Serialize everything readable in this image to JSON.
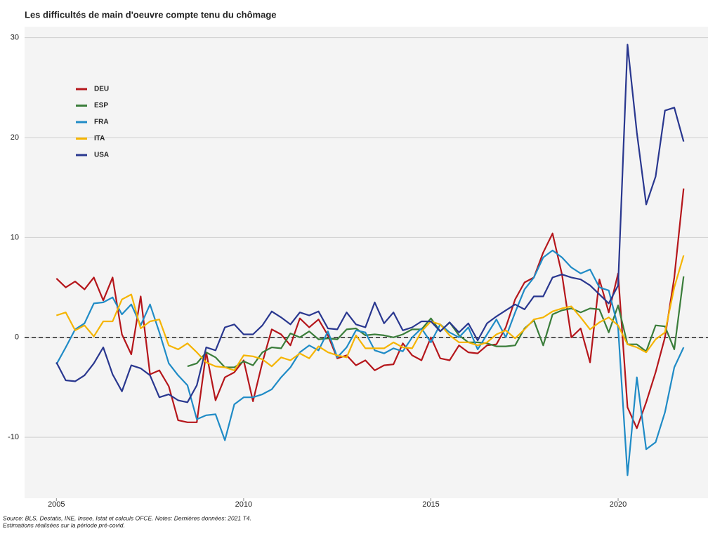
{
  "chart_data": {
    "type": "line",
    "title": "Les difficultés de main d'oeuvre compte tenu du chômage",
    "source": "Source: BLS, Destatis, INE, Insee, Istat et calculs OFCE. Notes: Dernières données: 2021 T4.",
    "note": "Estimations réalisées sur la période pré-covid.",
    "x": [
      2005,
      2005.25,
      2005.5,
      2005.75,
      2006,
      2006.25,
      2006.5,
      2006.75,
      2007,
      2007.25,
      2007.5,
      2007.75,
      2008,
      2008.25,
      2008.5,
      2008.75,
      2009,
      2009.25,
      2009.5,
      2009.75,
      2010,
      2010.25,
      2010.5,
      2010.75,
      2011,
      2011.25,
      2011.5,
      2011.75,
      2012,
      2012.25,
      2012.5,
      2012.75,
      2013,
      2013.25,
      2013.5,
      2013.75,
      2014,
      2014.25,
      2014.5,
      2014.75,
      2015,
      2015.25,
      2015.5,
      2015.75,
      2016,
      2016.25,
      2016.5,
      2016.75,
      2017,
      2017.25,
      2017.5,
      2017.75,
      2018,
      2018.25,
      2018.5,
      2018.75,
      2019,
      2019.25,
      2019.5,
      2019.75,
      2020,
      2020.25,
      2020.5,
      2020.75,
      2021,
      2021.25,
      2021.5,
      2021.75
    ],
    "series": [
      {
        "name": "DEU",
        "color": "#b5161b",
        "values": [
          5.9,
          5.0,
          5.6,
          4.8,
          6.0,
          3.7,
          6.0,
          0.3,
          -1.7,
          4.1,
          -3.7,
          -3.3,
          -4.9,
          -8.3,
          -8.5,
          -8.5,
          -1.5,
          -6.3,
          -4.0,
          -3.5,
          -2.3,
          -6.4,
          -2.5,
          0.8,
          0.3,
          -0.8,
          1.9,
          1.0,
          1.8,
          0.2,
          -2.1,
          -1.8,
          -2.8,
          -2.3,
          -3.3,
          -2.8,
          -2.7,
          -0.6,
          -1.8,
          -2.3,
          0.0,
          -2.1,
          -2.3,
          -0.8,
          -1.5,
          -1.6,
          -0.8,
          -0.7,
          1.0,
          3.8,
          5.5,
          6.0,
          8.5,
          10.4,
          6.3,
          0.0,
          0.9,
          -2.5,
          5.8,
          2.5,
          6.4,
          -7.0,
          -9.1,
          -6.5,
          -3.5,
          0.0,
          6.0,
          14.9
        ]
      },
      {
        "name": "ESP",
        "color": "#3a7d3a",
        "values": [
          null,
          null,
          null,
          null,
          null,
          null,
          null,
          null,
          null,
          null,
          null,
          null,
          null,
          null,
          -2.9,
          -2.6,
          -1.5,
          -2.0,
          -3.0,
          -3.0,
          -2.4,
          -2.8,
          -1.5,
          -1.0,
          -1.1,
          0.4,
          0.0,
          0.6,
          -0.2,
          -0.1,
          -0.2,
          0.8,
          0.9,
          0.2,
          0.3,
          0.2,
          0.0,
          0.3,
          0.8,
          0.8,
          1.9,
          0.6,
          1.5,
          0.2,
          -0.5,
          -0.5,
          -0.6,
          -0.9,
          -0.9,
          -0.8,
          0.9,
          1.7,
          -0.8,
          2.3,
          2.7,
          2.9,
          2.5,
          2.9,
          2.8,
          0.5,
          3.2,
          -0.7,
          -0.7,
          -1.4,
          1.2,
          1.1,
          -1.2,
          6.1
        ]
      },
      {
        "name": "FRA",
        "color": "#1f8bc6",
        "values": [
          -2.7,
          -1.0,
          0.8,
          1.4,
          3.4,
          3.5,
          4.0,
          2.3,
          3.3,
          1.2,
          3.3,
          0.5,
          -2.6,
          -3.8,
          -4.8,
          -8.2,
          -7.8,
          -7.7,
          -10.3,
          -6.7,
          -6.0,
          -6.0,
          -5.7,
          -5.2,
          -4.0,
          -3.0,
          -1.5,
          -0.8,
          -1.3,
          0.6,
          -2.0,
          -1.0,
          0.7,
          0.5,
          -1.3,
          -1.6,
          -1.1,
          -1.4,
          0.0,
          0.9,
          -0.5,
          1.3,
          0.5,
          0.0,
          1.0,
          -1.2,
          0.3,
          1.8,
          0.0,
          2.5,
          4.8,
          6.0,
          8.0,
          8.7,
          8.0,
          7.0,
          6.4,
          6.8,
          5.0,
          4.7,
          1.0,
          -13.8,
          -4.0,
          -11.2,
          -10.5,
          -7.5,
          -3.0,
          -1.0
        ]
      },
      {
        "name": "ITA",
        "color": "#f5b400",
        "values": [
          2.2,
          2.5,
          0.7,
          1.2,
          0.1,
          1.6,
          1.6,
          3.8,
          4.3,
          0.9,
          1.6,
          1.8,
          -0.8,
          -1.2,
          -0.6,
          -1.5,
          -2.5,
          -2.9,
          -3.0,
          -3.3,
          -1.8,
          -1.9,
          -2.2,
          -2.9,
          -2.0,
          -2.3,
          -1.6,
          -2.1,
          -0.9,
          -1.5,
          -1.8,
          -2.0,
          0.2,
          -1.1,
          -1.1,
          -1.1,
          -0.5,
          -1.0,
          -1.1,
          0.6,
          1.6,
          1.3,
          0.2,
          -0.5,
          -0.5,
          -0.8,
          -0.5,
          0.3,
          0.7,
          -0.1,
          0.8,
          1.8,
          2.0,
          2.6,
          2.9,
          3.1,
          2.0,
          0.8,
          1.5,
          2.0,
          1.2,
          -0.7,
          -1.0,
          -1.5,
          -0.2,
          0.5,
          5.0,
          8.2
        ]
      },
      {
        "name": "USA",
        "color": "#29378f",
        "values": [
          -2.5,
          -4.3,
          -4.4,
          -3.8,
          -2.6,
          -1.0,
          -3.7,
          -5.4,
          -2.8,
          -3.1,
          -3.8,
          -6.0,
          -5.7,
          -6.3,
          -6.5,
          -4.8,
          -1.0,
          -1.3,
          1.0,
          1.3,
          0.3,
          0.3,
          1.2,
          2.6,
          2.0,
          1.3,
          2.5,
          2.2,
          2.6,
          0.9,
          0.8,
          2.5,
          1.3,
          1.0,
          3.5,
          1.4,
          2.5,
          0.7,
          1.0,
          1.6,
          1.6,
          0.6,
          1.5,
          0.5,
          1.4,
          -0.3,
          1.4,
          2.1,
          2.7,
          3.3,
          2.8,
          4.1,
          4.1,
          6.0,
          6.3,
          6.0,
          5.8,
          5.2,
          4.3,
          3.4,
          5.2,
          29.3,
          20.5,
          13.3,
          16.1,
          22.7,
          23.0,
          19.6
        ]
      }
    ],
    "xlim": [
      2004.15,
      2022.4
    ],
    "xticks": [
      2005,
      2010,
      2015,
      2020
    ],
    "ylim": [
      -16.1,
      31.1
    ],
    "yticks": [
      -10,
      0,
      10,
      20,
      30
    ],
    "grid": true,
    "reference_line": 0,
    "legend": "upper left"
  }
}
